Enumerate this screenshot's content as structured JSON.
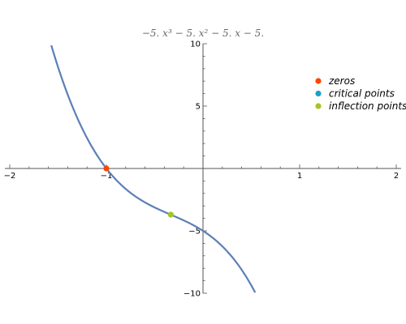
{
  "chart_data": {
    "type": "line",
    "title": "−5. x³ − 5. x² − 5. x − 5.",
    "function": {
      "coefficients": [
        -5,
        -5,
        -5,
        -5
      ]
    },
    "x_range": [
      -1.57,
      0.54
    ],
    "xlim": [
      -2.05,
      2.05
    ],
    "ylim": [
      -10,
      10
    ],
    "xticks": [
      {
        "value": -2,
        "label": "−2"
      },
      {
        "value": -1,
        "label": "−1"
      },
      {
        "value": 1,
        "label": "1"
      },
      {
        "value": 2,
        "label": "2"
      }
    ],
    "yticks": [
      {
        "value": 10,
        "label": "10"
      },
      {
        "value": 5,
        "label": "5"
      },
      {
        "value": -5,
        "label": "−5"
      },
      {
        "value": -10,
        "label": "−10"
      }
    ],
    "series": [
      {
        "name": "zeros",
        "color": "#ff4500",
        "points": [
          {
            "x": -1,
            "y": 0
          }
        ]
      },
      {
        "name": "critical points",
        "color": "#1e9fc8",
        "points": []
      },
      {
        "name": "inflection points",
        "color": "#a5c422",
        "points": [
          {
            "x": -0.333,
            "y": -3.7
          }
        ]
      }
    ],
    "curve_color": "#5b7fb8",
    "legend_position": "right"
  }
}
